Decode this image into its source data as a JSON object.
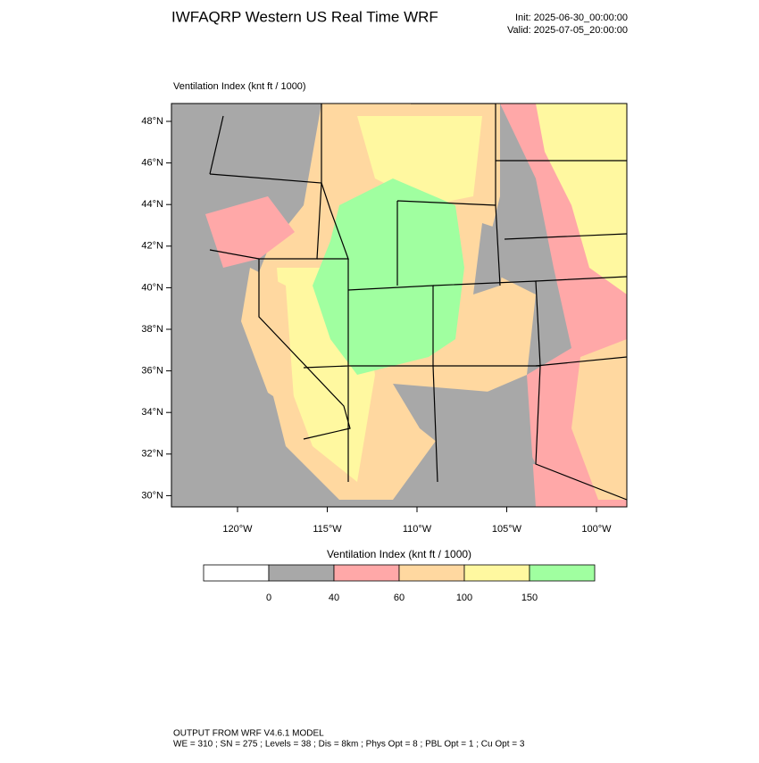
{
  "header": {
    "title": "IWFAQRP Western US Real Time WRF",
    "init": "Init: 2025-06-30_00:00:00",
    "valid": "Valid: 2025-07-05_20:00:00"
  },
  "plot": {
    "label": "Ventilation Index   (knt ft / 1000)"
  },
  "map": {
    "lat_labels": [
      "48°N",
      "46°N",
      "44°N",
      "42°N",
      "40°N",
      "38°N",
      "36°N",
      "34°N",
      "32°N",
      "30°N"
    ],
    "lon_labels": [
      "120°W",
      "115°W",
      "110°W",
      "105°W",
      "100°W"
    ]
  },
  "colorbar": {
    "title": "Ventilation Index   (knt ft / 1000)",
    "colors": [
      "#ffffff",
      "#a8a8a8",
      "#ffa8a8",
      "#ffd8a0",
      "#fff8a0",
      "#a0ffa0"
    ],
    "labels": [
      "0",
      "40",
      "60",
      "100",
      "150"
    ]
  },
  "footer": {
    "line1": "OUTPUT FROM WRF V4.6.1 MODEL",
    "line2": "WE = 310 ; SN = 275 ; Levels = 38 ; Dis = 8km ; Phys Opt = 8 ; PBL Opt = 1 ; Cu Opt = 3"
  }
}
